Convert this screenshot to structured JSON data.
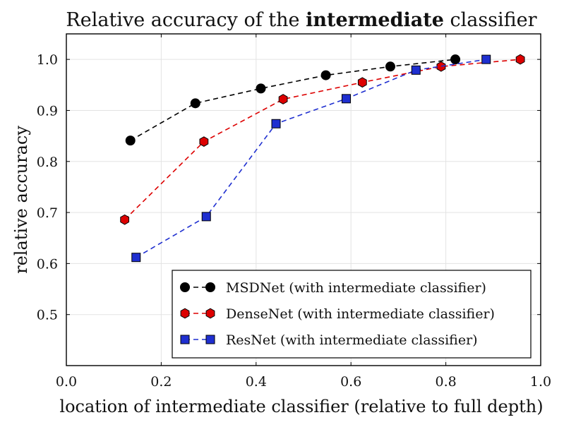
{
  "chart_data": {
    "type": "line",
    "title_parts": {
      "before": "Relative accuracy of the ",
      "bold": "intermediate",
      "after": " classifier"
    },
    "xlabel": "location of intermediate classifier (relative to full depth)",
    "ylabel": "relative accuracy",
    "xlim": [
      0.0,
      1.0
    ],
    "ylim": [
      0.4,
      1.05
    ],
    "x_ticks": [
      0.0,
      0.2,
      0.4,
      0.6,
      0.8,
      1.0
    ],
    "x_tick_labels": [
      "0.0",
      "0.2",
      "0.4",
      "0.6",
      "0.8",
      "1.0"
    ],
    "y_ticks": [
      0.5,
      0.6,
      0.7,
      0.8,
      0.9,
      1.0
    ],
    "y_tick_labels": [
      "0.5",
      "0.6",
      "0.7",
      "0.8",
      "0.9",
      "1.0"
    ],
    "grid": true,
    "legend_position": "bottom-right",
    "series": [
      {
        "name": "MSDNet (with intermediate classifier)",
        "color": "#000000",
        "marker": "circle",
        "x": [
          0.135,
          0.272,
          0.41,
          0.547,
          0.683,
          0.82
        ],
        "y": [
          0.841,
          0.914,
          0.943,
          0.969,
          0.986,
          1.0
        ]
      },
      {
        "name": "DenseNet (with intermediate classifier)",
        "color": "#dd0000",
        "marker": "hexagon",
        "x": [
          0.123,
          0.29,
          0.457,
          0.624,
          0.79,
          0.957
        ],
        "y": [
          0.686,
          0.839,
          0.922,
          0.955,
          0.986,
          1.0
        ]
      },
      {
        "name": "ResNet (with intermediate classifier)",
        "color": "#1f2fd0",
        "marker": "square",
        "x": [
          0.147,
          0.295,
          0.442,
          0.59,
          0.737,
          0.885
        ],
        "y": [
          0.612,
          0.692,
          0.874,
          0.923,
          0.979,
          1.0
        ]
      }
    ]
  }
}
